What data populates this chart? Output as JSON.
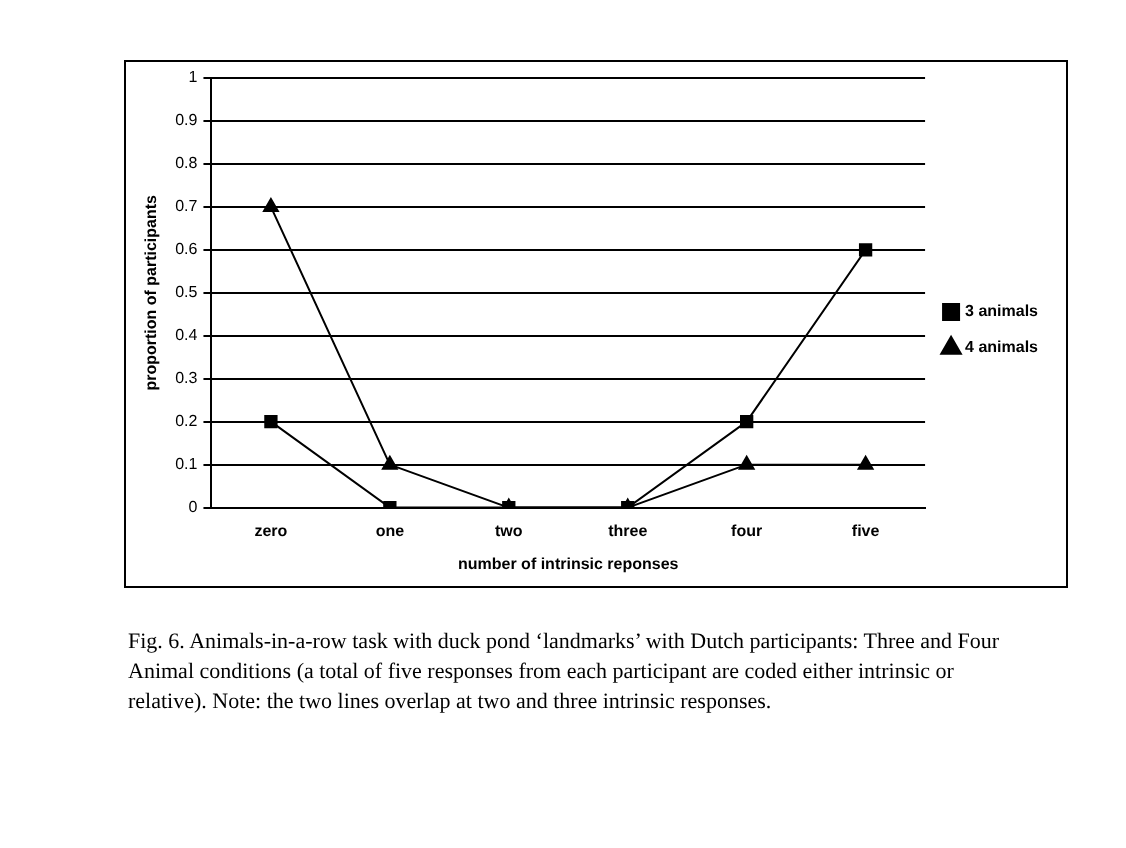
{
  "chart_data": {
    "type": "line",
    "xlabel": "number of intrinsic reponses",
    "ylabel": "proportion of participants",
    "categories": [
      "zero",
      "one",
      "two",
      "three",
      "four",
      "five"
    ],
    "series": [
      {
        "name": "3 animals",
        "color": "#000000",
        "marker": "square",
        "values": [
          0.2,
          0,
          0,
          0,
          0.2,
          0.6
        ]
      },
      {
        "name": "4 animals",
        "color": "#000000",
        "marker": "triangle",
        "values": [
          0.7,
          0.1,
          0,
          0,
          0.1,
          0.1
        ]
      }
    ],
    "ylim": [
      0,
      1
    ],
    "yticks": [
      0,
      0.1,
      0.2,
      0.3,
      0.4,
      0.5,
      0.6,
      0.7,
      0.8,
      0.9,
      1
    ],
    "grid": "y",
    "legend": "right",
    "line_style": "solid",
    "annotations": [
      "Fig. 6. Animals-in-a-row task with duck pond ‘landmarks’ with Dutch participants: Three and Four Animal conditions (a total of five responses from each participant are coded either intrinsic or relative). Note: the two lines overlap at two and three intrinsic responses."
    ]
  }
}
